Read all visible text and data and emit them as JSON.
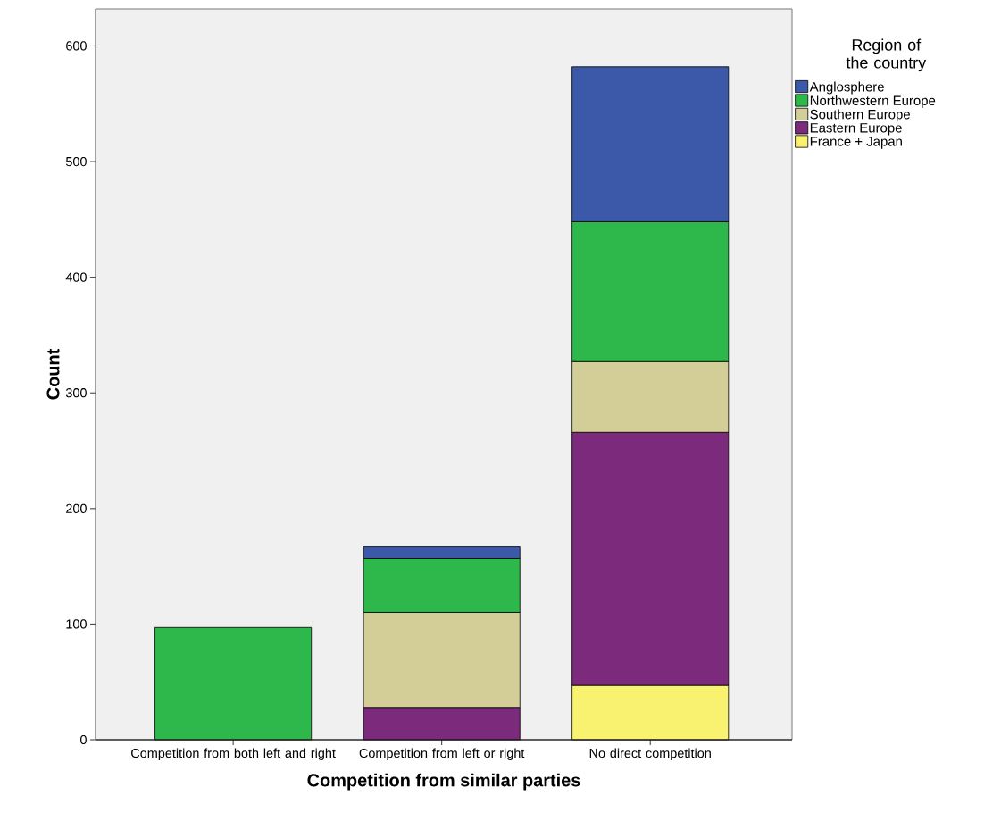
{
  "chart_data": {
    "type": "bar",
    "stacked": true,
    "xlabel": "Competition from similar parties",
    "ylabel": "Count",
    "legend_title": "Region of the country",
    "legend": "top right",
    "categories": [
      "Competition from both left and right",
      "Competition from left or right",
      "No direct competition"
    ],
    "ylim": [
      0,
      632
    ],
    "yticks": [
      0,
      100,
      200,
      300,
      400,
      500,
      600
    ],
    "grid": false,
    "series": [
      {
        "name": "France + Japan",
        "color": "#f9f270",
        "values": [
          null,
          null,
          47
        ]
      },
      {
        "name": "Eastern Europe",
        "color": "#7b2a7c",
        "values": [
          null,
          28,
          219
        ]
      },
      {
        "name": "Southern Europe",
        "color": "#d3ce98",
        "values": [
          null,
          82,
          61
        ]
      },
      {
        "name": "Northwestern Europe",
        "color": "#2eb84b",
        "values": [
          97,
          47,
          121
        ]
      },
      {
        "name": "Anglosphere",
        "color": "#3c58a8",
        "values": [
          null,
          10,
          134
        ]
      }
    ]
  }
}
